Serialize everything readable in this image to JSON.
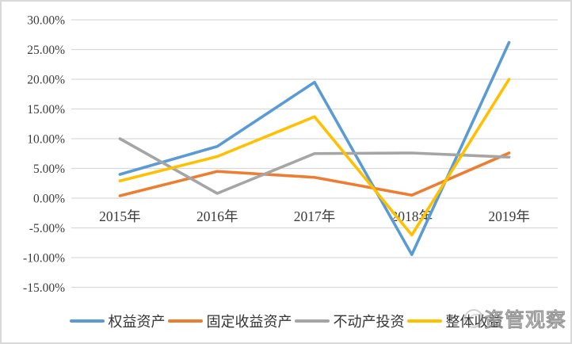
{
  "watermark": {
    "text": "资管观察"
  },
  "y_axis": {
    "tick_labels": [
      "30.00%",
      "25.00%",
      "20.00%",
      "15.00%",
      "10.00%",
      "5.00%",
      "0.00%",
      "-5.00%",
      "-10.00%",
      "-15.00%"
    ]
  },
  "x_axis": {
    "tick_labels": [
      "2015年",
      "2016年",
      "2017年",
      "2018年",
      "2019年"
    ]
  },
  "legend": {
    "items": [
      {
        "label": "权益资产",
        "color": "#5B9BD5"
      },
      {
        "label": "固定收益资产",
        "color": "#ED7D31"
      },
      {
        "label": "不动产投资",
        "color": "#A5A5A5"
      },
      {
        "label": "整体收益",
        "color": "#FFC000"
      }
    ]
  },
  "chart_data": {
    "type": "line",
    "categories": [
      "2015年",
      "2016年",
      "2017年",
      "2018年",
      "2019年"
    ],
    "series": [
      {
        "name": "权益资产",
        "color": "#5B9BD5",
        "values": [
          4.0,
          8.7,
          19.5,
          -9.5,
          26.2
        ]
      },
      {
        "name": "固定收益资产",
        "color": "#ED7D31",
        "values": [
          0.4,
          4.5,
          3.5,
          0.5,
          7.6
        ]
      },
      {
        "name": "不动产投资",
        "color": "#A5A5A5",
        "values": [
          10.0,
          0.8,
          7.5,
          7.6,
          6.9
        ]
      },
      {
        "name": "整体收益",
        "color": "#FFC000",
        "values": [
          2.9,
          7.0,
          13.7,
          -6.2,
          20.0
        ]
      }
    ],
    "title": "",
    "xlabel": "",
    "ylabel": "",
    "ylim": [
      -15,
      30
    ],
    "ytick_step": 5,
    "ytick_format": "0.00%",
    "grid": true,
    "legend_position": "bottom",
    "watermark": "资管观察"
  }
}
